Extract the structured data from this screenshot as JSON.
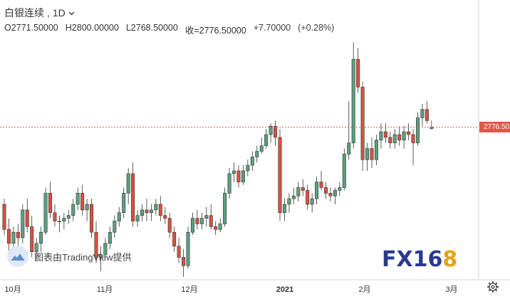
{
  "header": {
    "symbol": "白银连续",
    "separator": ",",
    "interval": "1D"
  },
  "ohlc": {
    "open": "O2771.50000",
    "high": "H2800.00000",
    "low": "L2768.50000",
    "close": "收=2776.50000",
    "change": "+7.70000",
    "change_pct": "(+0.28%)"
  },
  "watermark": {
    "text": "图表由TradingView提供",
    "icon": "tradingview-cloud-icon"
  },
  "logo": {
    "fx": "FX",
    "num": "16",
    "eight": "8"
  },
  "current_price_label": "2776.50",
  "colors": {
    "up": "#5d9e7e",
    "down": "#d9503f",
    "price_line": "#e0584a",
    "axis_text": "#333333"
  },
  "chart_data": {
    "type": "candlestick",
    "title": "",
    "xlabel": "",
    "ylabel": "",
    "x_tick_labels": [
      "10月",
      "11月",
      "12月",
      "2021",
      "2月",
      "3月"
    ],
    "current_price": 2776.5,
    "y_range": [
      2250,
      3120
    ],
    "grid": false,
    "candles": [
      [
        2500,
        2520,
        2390,
        2410
      ],
      [
        2410,
        2450,
        2330,
        2360
      ],
      [
        2360,
        2420,
        2340,
        2400
      ],
      [
        2400,
        2430,
        2350,
        2380
      ],
      [
        2380,
        2500,
        2360,
        2480
      ],
      [
        2480,
        2520,
        2400,
        2420
      ],
      [
        2420,
        2460,
        2310,
        2330
      ],
      [
        2330,
        2380,
        2300,
        2360
      ],
      [
        2360,
        2420,
        2330,
        2400
      ],
      [
        2400,
        2560,
        2390,
        2540
      ],
      [
        2540,
        2580,
        2450,
        2470
      ],
      [
        2470,
        2500,
        2420,
        2440
      ],
      [
        2440,
        2460,
        2400,
        2440
      ],
      [
        2440,
        2470,
        2410,
        2450
      ],
      [
        2450,
        2480,
        2430,
        2460
      ],
      [
        2460,
        2520,
        2440,
        2500
      ],
      [
        2500,
        2560,
        2480,
        2540
      ],
      [
        2540,
        2570,
        2460,
        2480
      ],
      [
        2480,
        2520,
        2440,
        2500
      ],
      [
        2500,
        2520,
        2380,
        2400
      ],
      [
        2400,
        2440,
        2290,
        2310
      ],
      [
        2310,
        2350,
        2260,
        2320
      ],
      [
        2320,
        2380,
        2300,
        2360
      ],
      [
        2360,
        2420,
        2340,
        2400
      ],
      [
        2400,
        2460,
        2380,
        2440
      ],
      [
        2440,
        2490,
        2420,
        2470
      ],
      [
        2470,
        2560,
        2450,
        2540
      ],
      [
        2540,
        2630,
        2500,
        2610
      ],
      [
        2610,
        2650,
        2420,
        2440
      ],
      [
        2440,
        2480,
        2420,
        2460
      ],
      [
        2460,
        2500,
        2440,
        2480
      ],
      [
        2480,
        2520,
        2440,
        2470
      ],
      [
        2470,
        2500,
        2440,
        2480
      ],
      [
        2480,
        2520,
        2460,
        2500
      ],
      [
        2500,
        2530,
        2440,
        2460
      ],
      [
        2460,
        2490,
        2430,
        2450
      ],
      [
        2450,
        2470,
        2380,
        2400
      ],
      [
        2400,
        2420,
        2330,
        2350
      ],
      [
        2350,
        2380,
        2290,
        2310
      ],
      [
        2310,
        2340,
        2240,
        2280
      ],
      [
        2280,
        2420,
        2270,
        2400
      ],
      [
        2400,
        2470,
        2390,
        2450
      ],
      [
        2450,
        2480,
        2410,
        2430
      ],
      [
        2430,
        2470,
        2410,
        2450
      ],
      [
        2450,
        2490,
        2420,
        2460
      ],
      [
        2460,
        2500,
        2410,
        2420
      ],
      [
        2420,
        2440,
        2390,
        2410
      ],
      [
        2410,
        2450,
        2400,
        2430
      ],
      [
        2430,
        2560,
        2420,
        2540
      ],
      [
        2540,
        2630,
        2520,
        2610
      ],
      [
        2610,
        2650,
        2580,
        2620
      ],
      [
        2620,
        2640,
        2560,
        2580
      ],
      [
        2580,
        2640,
        2570,
        2620
      ],
      [
        2620,
        2660,
        2600,
        2640
      ],
      [
        2640,
        2690,
        2620,
        2670
      ],
      [
        2670,
        2710,
        2650,
        2690
      ],
      [
        2690,
        2740,
        2680,
        2710
      ],
      [
        2710,
        2770,
        2700,
        2750
      ],
      [
        2750,
        2790,
        2720,
        2780
      ],
      [
        2780,
        2800,
        2710,
        2740
      ],
      [
        2740,
        2770,
        2440,
        2470
      ],
      [
        2470,
        2520,
        2440,
        2500
      ],
      [
        2500,
        2540,
        2470,
        2520
      ],
      [
        2520,
        2560,
        2500,
        2530
      ],
      [
        2530,
        2580,
        2510,
        2560
      ],
      [
        2560,
        2590,
        2530,
        2550
      ],
      [
        2550,
        2570,
        2480,
        2500
      ],
      [
        2500,
        2540,
        2470,
        2520
      ],
      [
        2520,
        2600,
        2500,
        2580
      ],
      [
        2580,
        2620,
        2550,
        2560
      ],
      [
        2560,
        2580,
        2520,
        2540
      ],
      [
        2540,
        2560,
        2510,
        2530
      ],
      [
        2530,
        2560,
        2500,
        2550
      ],
      [
        2550,
        2580,
        2530,
        2560
      ],
      [
        2560,
        2700,
        2550,
        2680
      ],
      [
        2680,
        2870,
        2660,
        2720
      ],
      [
        2720,
        3080,
        2700,
        3020
      ],
      [
        3020,
        3060,
        2900,
        2920
      ],
      [
        2920,
        2940,
        2620,
        2660
      ],
      [
        2660,
        2720,
        2620,
        2700
      ],
      [
        2700,
        2740,
        2630,
        2660
      ],
      [
        2660,
        2750,
        2640,
        2730
      ],
      [
        2730,
        2790,
        2700,
        2760
      ],
      [
        2760,
        2790,
        2720,
        2740
      ],
      [
        2740,
        2760,
        2700,
        2720
      ],
      [
        2720,
        2770,
        2700,
        2750
      ],
      [
        2750,
        2780,
        2710,
        2730
      ],
      [
        2730,
        2780,
        2700,
        2760
      ],
      [
        2760,
        2790,
        2730,
        2750
      ],
      [
        2750,
        2770,
        2640,
        2720
      ],
      [
        2720,
        2830,
        2710,
        2810
      ],
      [
        2810,
        2860,
        2780,
        2840
      ],
      [
        2840,
        2870,
        2790,
        2800
      ],
      [
        2771.5,
        2800,
        2768.5,
        2776.5
      ]
    ]
  }
}
